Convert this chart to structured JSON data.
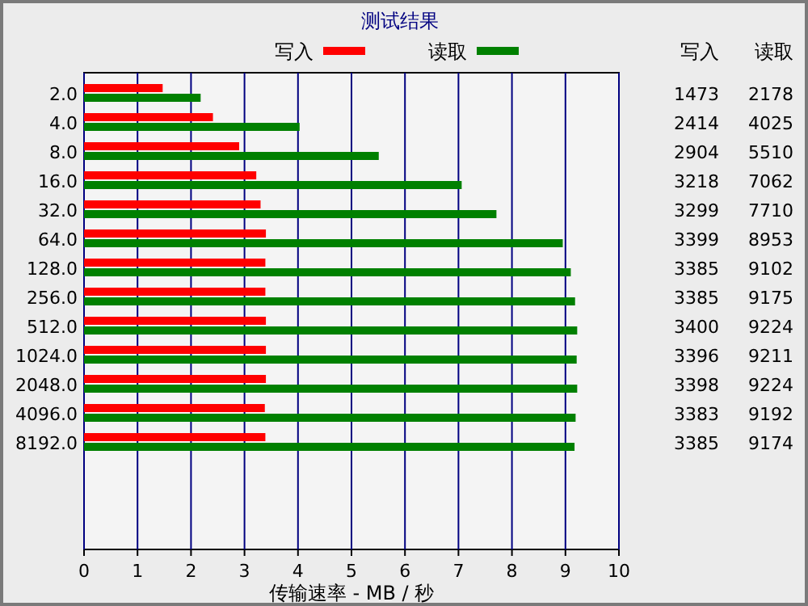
{
  "chart_data": {
    "type": "bar",
    "orientation": "horizontal",
    "title": "测试结果",
    "xlabel": "传输速率 - MB / 秒",
    "categories": [
      "2.0",
      "4.0",
      "8.0",
      "16.0",
      "32.0",
      "64.0",
      "128.0",
      "256.0",
      "512.0",
      "1024.0",
      "2048.0",
      "4096.0",
      "8192.0"
    ],
    "series": [
      {
        "name": "写入",
        "color": "#ff0000",
        "values": [
          1.47,
          2.41,
          2.9,
          3.22,
          3.3,
          3.4,
          3.39,
          3.39,
          3.4,
          3.4,
          3.4,
          3.38,
          3.39
        ]
      },
      {
        "name": "读取",
        "color": "#008000",
        "values": [
          2.18,
          4.03,
          5.51,
          7.06,
          7.71,
          8.95,
          9.1,
          9.18,
          9.22,
          9.21,
          9.22,
          9.19,
          9.17
        ]
      }
    ],
    "annotations": [
      "1473",
      "2178",
      "2414",
      "4025",
      "2904",
      "5510",
      "3218",
      "7062",
      "3299",
      "7710",
      "3399",
      "8953",
      "3385",
      "9102",
      "3385",
      "9175",
      "3400",
      "9224",
      "3396",
      "9211",
      "3398",
      "9224",
      "3383",
      "9192",
      "3385",
      "9174"
    ],
    "xlim": [
      0,
      10
    ],
    "xticks": [
      0,
      1,
      2,
      3,
      4,
      5,
      6,
      7,
      8,
      9,
      10
    ],
    "grid": "x",
    "legend": "top"
  }
}
